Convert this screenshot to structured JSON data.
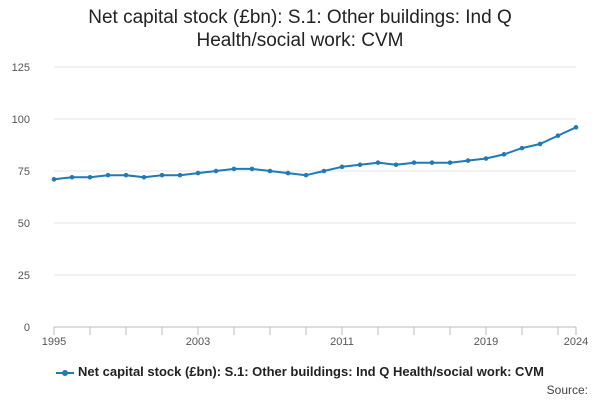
{
  "colors": {
    "series": "#1f7ab5",
    "grid": "#e6e6e6",
    "axis": "#bbbbbb"
  },
  "source_label": "Source:",
  "chart_data": {
    "type": "line",
    "title_lines": [
      "Net capital stock (£bn): S.1: Other buildings: Ind Q",
      "Health/social work: CVM"
    ],
    "xlabel": "",
    "ylabel": "",
    "xlim": [
      1995,
      2024
    ],
    "ylim": [
      0,
      125
    ],
    "y_ticks": [
      0,
      25,
      50,
      75,
      100,
      125
    ],
    "x_ticks": [
      1995,
      2003,
      2011,
      2019,
      2024
    ],
    "grid": "horizontal",
    "legend_position": "bottom",
    "x": [
      1995,
      1996,
      1997,
      1998,
      1999,
      2000,
      2001,
      2002,
      2003,
      2004,
      2005,
      2006,
      2007,
      2008,
      2009,
      2010,
      2011,
      2012,
      2013,
      2014,
      2015,
      2016,
      2017,
      2018,
      2019,
      2020,
      2021,
      2022,
      2023,
      2024
    ],
    "series": [
      {
        "name": "Net capital stock (£bn): S.1: Other buildings: Ind Q Health/social work: CVM",
        "values": [
          71,
          72,
          72,
          73,
          73,
          72,
          73,
          73,
          74,
          75,
          76,
          76,
          75,
          74,
          73,
          75,
          77,
          78,
          79,
          78,
          79,
          79,
          79,
          80,
          81,
          83,
          86,
          88,
          92,
          96
        ]
      }
    ]
  }
}
